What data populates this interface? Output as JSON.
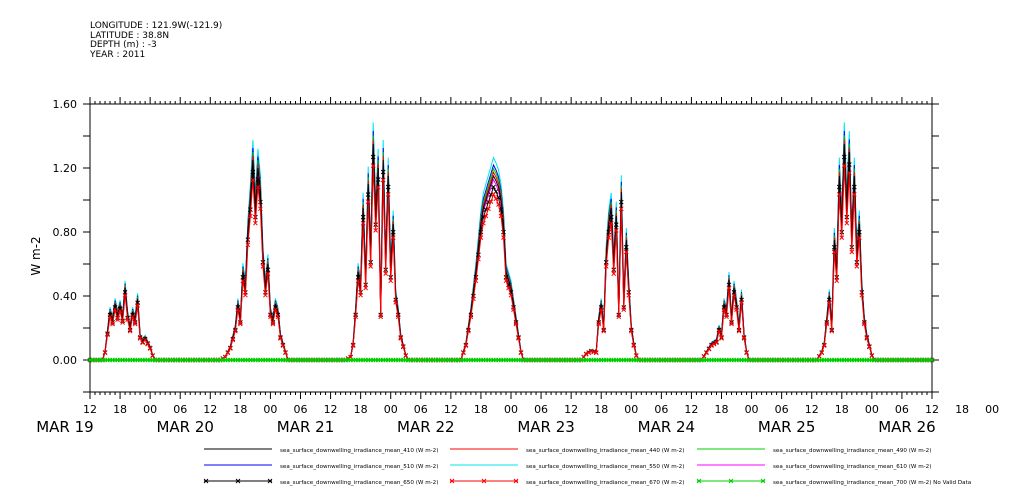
{
  "header": {
    "longitude": "LONGITUDE : 121.9W(-121.9)",
    "latitude": "LATITUDE : 38.8N",
    "depth": "DEPTH (m) : -3",
    "year": "YEAR : 2011"
  },
  "chart_data": {
    "type": "line",
    "title": "",
    "xlabel": "",
    "ylabel": "W m-2",
    "ylim": [
      -0.2,
      1.6
    ],
    "yticks": [
      "0.00",
      "0.40",
      "0.80",
      "1.20",
      "1.60"
    ],
    "hour_tick_labels": [
      "12",
      "18",
      "00",
      "06",
      "12",
      "18",
      "00",
      "06",
      "12",
      "18",
      "00",
      "06",
      "12",
      "18",
      "00",
      "06",
      "12",
      "18",
      "00",
      "06",
      "12",
      "18",
      "00",
      "06",
      "12",
      "18",
      "00",
      "06",
      "12",
      "18",
      "00",
      "06",
      "12"
    ],
    "day_labels": [
      "MAR 19",
      "MAR 20",
      "MAR 21",
      "MAR 22",
      "MAR 23",
      "MAR 24",
      "MAR 25",
      "MAR 26"
    ],
    "x_range_hours_from_MAR19_00": [
      12,
      180
    ],
    "grid": false,
    "legend_placement": "bottom",
    "colors": {
      "s410": "#000000",
      "s440": "#ff0000",
      "s490": "#00cc00",
      "s510": "#0000ff",
      "s550": "#00e5ee",
      "s610": "#ff00ff",
      "s650": "#000000",
      "s670": "#ff0000",
      "s700": "#00cc00"
    },
    "series": [
      {
        "name": "sea_surface_downwelling_irradiance_mean_410 (W m-2)",
        "key": "s410",
        "scale": 1.0
      },
      {
        "name": "sea_surface_downwelling_irradiance_mean_440 (W m-2)",
        "key": "s440",
        "scale": 1.02
      },
      {
        "name": "sea_surface_downwelling_irradiance_mean_490 (W m-2)",
        "key": "s490",
        "scale": 1.04
      },
      {
        "name": "sea_surface_downwelling_irradiance_mean_510 (W m-2)",
        "key": "s510",
        "scale": 1.06
      },
      {
        "name": "sea_surface_downwelling_irradiance_mean_550 (W m-2)",
        "key": "s550",
        "scale": 1.1
      },
      {
        "name": "sea_surface_downwelling_irradiance_mean_610 (W m-2)",
        "key": "s610",
        "scale": 0.98
      },
      {
        "name": "sea_surface_downwelling_irradiance_mean_650 (W m-2)",
        "key": "s650",
        "scale": 0.94,
        "marker": "x"
      },
      {
        "name": "sea_surface_downwelling_irradiance_mean_670 (W m-2)",
        "key": "s670",
        "scale": 0.9,
        "marker": "x"
      },
      {
        "name": "sea_surface_downwelling_irradiance_mean_700 (W m-2) No Valid Data",
        "key": "s700",
        "scale": 0,
        "marker": "x"
      }
    ],
    "days": [
      {
        "date": "MAR 19",
        "points": [
          [
            14.5,
            0.0
          ],
          [
            15,
            0.05
          ],
          [
            16,
            0.3
          ],
          [
            16.5,
            0.25
          ],
          [
            17,
            0.35
          ],
          [
            17.5,
            0.28
          ],
          [
            18,
            0.34
          ],
          [
            18.5,
            0.26
          ],
          [
            19,
            0.45
          ],
          [
            19.5,
            0.28
          ],
          [
            20,
            0.2
          ],
          [
            20.5,
            0.3
          ],
          [
            21,
            0.25
          ],
          [
            21.5,
            0.38
          ],
          [
            22,
            0.15
          ],
          [
            22.5,
            0.12
          ],
          [
            23,
            0.14
          ],
          [
            24,
            0.08
          ],
          [
            24.5,
            0.03
          ],
          [
            25,
            0.0
          ]
        ]
      },
      {
        "date": "MAR 20",
        "points": [
          [
            38,
            0.0
          ],
          [
            39,
            0.02
          ],
          [
            40,
            0.08
          ],
          [
            41,
            0.2
          ],
          [
            41.5,
            0.35
          ],
          [
            42,
            0.25
          ],
          [
            42.5,
            0.55
          ],
          [
            43,
            0.45
          ],
          [
            43.5,
            0.8
          ],
          [
            44,
            1.0
          ],
          [
            44.5,
            1.25
          ],
          [
            45,
            0.95
          ],
          [
            45.5,
            1.2
          ],
          [
            46,
            1.05
          ],
          [
            46.5,
            0.65
          ],
          [
            47,
            0.45
          ],
          [
            47.5,
            0.6
          ],
          [
            48,
            0.3
          ],
          [
            48.5,
            0.25
          ],
          [
            49,
            0.35
          ],
          [
            49.5,
            0.3
          ],
          [
            50,
            0.15
          ],
          [
            51,
            0.05
          ],
          [
            51.5,
            0.0
          ]
        ]
      },
      {
        "date": "MAR 21",
        "points": [
          [
            63,
            0.0
          ],
          [
            64,
            0.02
          ],
          [
            64.5,
            0.1
          ],
          [
            65,
            0.3
          ],
          [
            65.5,
            0.55
          ],
          [
            66,
            0.45
          ],
          [
            66.5,
            0.95
          ],
          [
            67,
            0.5
          ],
          [
            67.5,
            1.1
          ],
          [
            68,
            0.65
          ],
          [
            68.5,
            1.35
          ],
          [
            69,
            0.9
          ],
          [
            69.5,
            1.2
          ],
          [
            70,
            0.3
          ],
          [
            70.5,
            1.25
          ],
          [
            71,
            0.6
          ],
          [
            71.5,
            1.15
          ],
          [
            72,
            0.55
          ],
          [
            72.5,
            0.85
          ],
          [
            73,
            0.4
          ],
          [
            73.5,
            0.3
          ],
          [
            74,
            0.15
          ],
          [
            75,
            0.03
          ],
          [
            75.5,
            0.0
          ]
        ]
      },
      {
        "date": "MAR 22",
        "points": [
          [
            86,
            0.0
          ],
          [
            87,
            0.1
          ],
          [
            88,
            0.3
          ],
          [
            89,
            0.55
          ],
          [
            90,
            0.85
          ],
          [
            90.5,
            0.95
          ],
          [
            91,
            1.0
          ],
          [
            91.5,
            1.05
          ],
          [
            92,
            1.1
          ],
          [
            92.5,
            1.15
          ],
          [
            93,
            1.12
          ],
          [
            93.5,
            1.08
          ],
          [
            94,
            1.0
          ],
          [
            94.5,
            0.85
          ],
          [
            95,
            0.55
          ],
          [
            95.5,
            0.5
          ],
          [
            96,
            0.45
          ],
          [
            96.5,
            0.35
          ],
          [
            97,
            0.25
          ],
          [
            98,
            0.05
          ],
          [
            98.5,
            0.0
          ]
        ]
      },
      {
        "date": "MAR 23",
        "points": [
          [
            110,
            0.0
          ],
          [
            111,
            0.04
          ],
          [
            112,
            0.06
          ],
          [
            113,
            0.05
          ],
          [
            113.5,
            0.25
          ],
          [
            114,
            0.35
          ],
          [
            114.5,
            0.2
          ],
          [
            115,
            0.65
          ],
          [
            115.5,
            0.85
          ],
          [
            116,
            0.95
          ],
          [
            116.5,
            0.6
          ],
          [
            117,
            0.9
          ],
          [
            117.5,
            0.3
          ],
          [
            118,
            1.05
          ],
          [
            118.5,
            0.35
          ],
          [
            119,
            0.75
          ],
          [
            119.5,
            0.45
          ],
          [
            120,
            0.2
          ],
          [
            120.5,
            0.1
          ],
          [
            121,
            0.03
          ],
          [
            121.5,
            0.0
          ]
        ]
      },
      {
        "date": "MAR 24",
        "points": [
          [
            134,
            0.0
          ],
          [
            135,
            0.05
          ],
          [
            136,
            0.1
          ],
          [
            137,
            0.12
          ],
          [
            137.5,
            0.2
          ],
          [
            138,
            0.15
          ],
          [
            138.5,
            0.35
          ],
          [
            139,
            0.3
          ],
          [
            139.5,
            0.5
          ],
          [
            140,
            0.25
          ],
          [
            140.5,
            0.45
          ],
          [
            141,
            0.35
          ],
          [
            141.5,
            0.2
          ],
          [
            142,
            0.4
          ],
          [
            142.5,
            0.15
          ],
          [
            143,
            0.05
          ],
          [
            143.5,
            0.0
          ]
        ]
      },
      {
        "date": "MAR 25",
        "points": [
          [
            157,
            0.0
          ],
          [
            158,
            0.05
          ],
          [
            158.5,
            0.1
          ],
          [
            159,
            0.25
          ],
          [
            159.5,
            0.4
          ],
          [
            160,
            0.2
          ],
          [
            160.5,
            0.75
          ],
          [
            161,
            0.55
          ],
          [
            161.5,
            1.15
          ],
          [
            162,
            0.85
          ],
          [
            162.5,
            1.35
          ],
          [
            163,
            0.95
          ],
          [
            163.5,
            1.3
          ],
          [
            164,
            0.75
          ],
          [
            164.5,
            1.15
          ],
          [
            165,
            0.65
          ],
          [
            165.5,
            0.85
          ],
          [
            166,
            0.45
          ],
          [
            166.5,
            0.25
          ],
          [
            167,
            0.15
          ],
          [
            168,
            0.03
          ],
          [
            168.5,
            0.0
          ]
        ]
      }
    ]
  }
}
